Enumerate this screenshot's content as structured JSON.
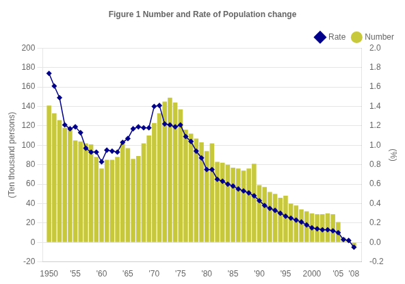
{
  "chart_data": {
    "type": "bar",
    "title": "Figure 1 Number and Rate of Population change",
    "y_label": "(Ten thousand persons)",
    "y2_label": "(%)",
    "x": [
      1950,
      1951,
      1952,
      1953,
      1954,
      1955,
      1956,
      1957,
      1958,
      1959,
      1960,
      1961,
      1962,
      1963,
      1964,
      1965,
      1966,
      1967,
      1968,
      1969,
      1970,
      1971,
      1972,
      1973,
      1974,
      1975,
      1976,
      1977,
      1978,
      1979,
      1980,
      1981,
      1982,
      1983,
      1984,
      1985,
      1986,
      1987,
      1988,
      1989,
      1990,
      1991,
      1992,
      1993,
      1994,
      1995,
      1996,
      1997,
      1998,
      1999,
      2000,
      2001,
      2002,
      2003,
      2004,
      2005,
      2006,
      2007,
      2008
    ],
    "series": [
      {
        "name": "Number",
        "type": "bar",
        "color": "#c8c83c",
        "values": [
          141,
          133,
          126,
          118,
          117,
          105,
          104,
          102,
          101,
          88,
          76,
          85,
          85,
          88,
          102,
          97,
          86,
          89,
          102,
          110,
          123,
          133,
          145,
          149,
          144,
          137,
          116,
          112,
          107,
          103,
          94,
          102,
          83,
          82,
          80,
          77,
          76,
          74,
          76,
          81,
          59,
          57,
          52,
          50,
          46,
          48,
          40,
          38,
          34,
          32,
          30,
          29,
          29,
          30,
          29,
          21,
          5,
          2,
          -6
        ]
      },
      {
        "name": "Rate",
        "type": "line",
        "axis": "y2",
        "color": "#00008b",
        "marker": "diamond",
        "values": [
          1.74,
          1.61,
          1.49,
          1.21,
          1.17,
          1.19,
          1.13,
          0.97,
          0.93,
          0.93,
          0.83,
          0.95,
          0.94,
          0.93,
          1.03,
          1.07,
          1.17,
          1.19,
          1.18,
          1.18,
          1.4,
          1.41,
          1.22,
          1.21,
          1.19,
          1.21,
          1.09,
          1.04,
          0.94,
          0.87,
          0.75,
          0.75,
          0.65,
          0.63,
          0.6,
          0.58,
          0.55,
          0.53,
          0.51,
          0.48,
          0.43,
          0.38,
          0.35,
          0.33,
          0.3,
          0.27,
          0.25,
          0.23,
          0.21,
          0.18,
          0.15,
          0.14,
          0.13,
          0.13,
          0.12,
          0.1,
          0.03,
          0.02,
          -0.05
        ]
      }
    ],
    "xlim": [
      1948.8,
      2009.5
    ],
    "xticks": [
      1950,
      {
        "value": 1955,
        "label": "'55"
      },
      {
        "value": 1960,
        "label": "'60"
      },
      {
        "value": 1965,
        "label": "'65"
      },
      {
        "value": 1970,
        "label": "'70"
      },
      {
        "value": 1975,
        "label": "'75"
      },
      {
        "value": 1980,
        "label": "'80"
      },
      {
        "value": 1985,
        "label": "'85"
      },
      {
        "value": 1990,
        "label": "'90"
      },
      {
        "value": 1995,
        "label": "'95"
      },
      2000,
      {
        "value": 2005,
        "label": "'05"
      },
      {
        "value": 2008,
        "label": "'08"
      }
    ],
    "ylim": [
      -20,
      200
    ],
    "yticks": [
      -20,
      0,
      20,
      40,
      60,
      80,
      100,
      120,
      140,
      160,
      180,
      200
    ],
    "y2lim": [
      -0.2,
      2.0
    ],
    "y2ticks": [
      -0.2,
      {
        "value": 0,
        "label": "0.0"
      },
      0.2,
      0.4,
      0.6,
      0.8,
      {
        "value": 1,
        "label": "1.0"
      },
      1.2,
      1.4,
      1.6,
      1.8,
      {
        "value": 2,
        "label": "2.0"
      }
    ],
    "grid": true,
    "legend": "upper right"
  }
}
